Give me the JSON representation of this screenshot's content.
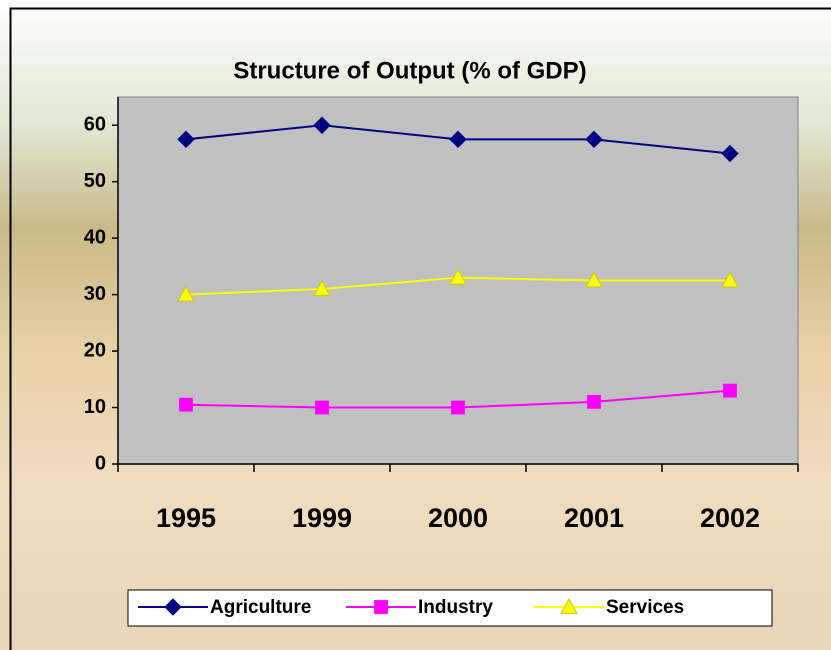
{
  "chart_data": {
    "type": "line",
    "title": "Structure of Output (% of GDP)",
    "categories": [
      "1995",
      "1999",
      "2000",
      "2001",
      "2002"
    ],
    "series": [
      {
        "name": "Agriculture",
        "color": "#000080",
        "marker": "diamond",
        "values": [
          57.5,
          60,
          57.5,
          57.5,
          55
        ]
      },
      {
        "name": "Industry",
        "color": "#ff00ff",
        "marker": "square",
        "values": [
          10.5,
          10,
          10,
          11,
          13
        ]
      },
      {
        "name": "Services",
        "color": "#ffff00",
        "marker": "triangle",
        "values": [
          30,
          31,
          33,
          32.5,
          32.5
        ]
      }
    ],
    "ylim": [
      0,
      65
    ],
    "yticks": [
      0,
      10,
      20,
      30,
      40,
      50,
      60
    ],
    "legend": "bottom"
  }
}
